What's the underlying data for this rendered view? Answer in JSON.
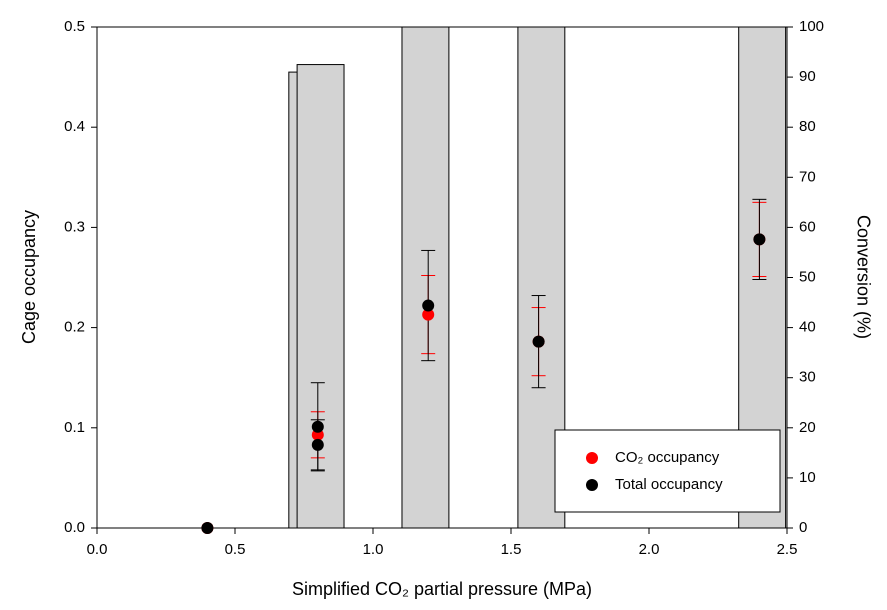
{
  "chart_data": {
    "type": "combo",
    "x_label": "Simplified CO₂ partial pressure (MPa)",
    "y_label": "Cage occupancy",
    "y2_label": "Conversion (%)",
    "xlim": [
      0,
      2.5
    ],
    "xticks": [
      {
        "value": 0,
        "label": "0.0"
      },
      0.5,
      {
        "value": 1,
        "label": "1.0"
      },
      1.5,
      {
        "value": 2,
        "label": "2.0"
      },
      2.5
    ],
    "ylim": [
      0,
      0.5
    ],
    "yticks": [
      {
        "value": 0,
        "label": "0.0"
      },
      0.1,
      0.2,
      0.3,
      0.4,
      0.5
    ],
    "y2lim": [
      0,
      100
    ],
    "y2ticks": [
      0,
      10,
      20,
      30,
      40,
      50,
      60,
      70,
      80,
      90,
      100
    ],
    "legend": "lower right",
    "series": [
      {
        "type": "bar",
        "axis": "y2",
        "color": "#d3d3d3",
        "x": [
          0.78,
          0.81,
          1.19,
          1.61,
          2.41
        ],
        "values": [
          91,
          92.5,
          100,
          100,
          100
        ]
      },
      {
        "type": "scatter",
        "name": "CO₂ occupancy",
        "color": "#ff0000",
        "x": [
          0.4,
          0.8,
          1.2,
          1.6,
          2.4
        ],
        "values": [
          0,
          0.093,
          0.213,
          0.186,
          0.288
        ],
        "errors": [
          0,
          0.023,
          0.039,
          0.034,
          0.037
        ]
      },
      {
        "type": "scatter",
        "name": "Total occupancy",
        "color": "#000000",
        "x": [
          0.4,
          0.8,
          0.8,
          1.2,
          1.6,
          2.4
        ],
        "values": [
          0,
          0.101,
          0.083,
          0.222,
          0.186,
          0.288
        ],
        "errors": [
          0,
          0.044,
          0.025,
          0.055,
          0.046,
          0.04
        ]
      }
    ]
  }
}
